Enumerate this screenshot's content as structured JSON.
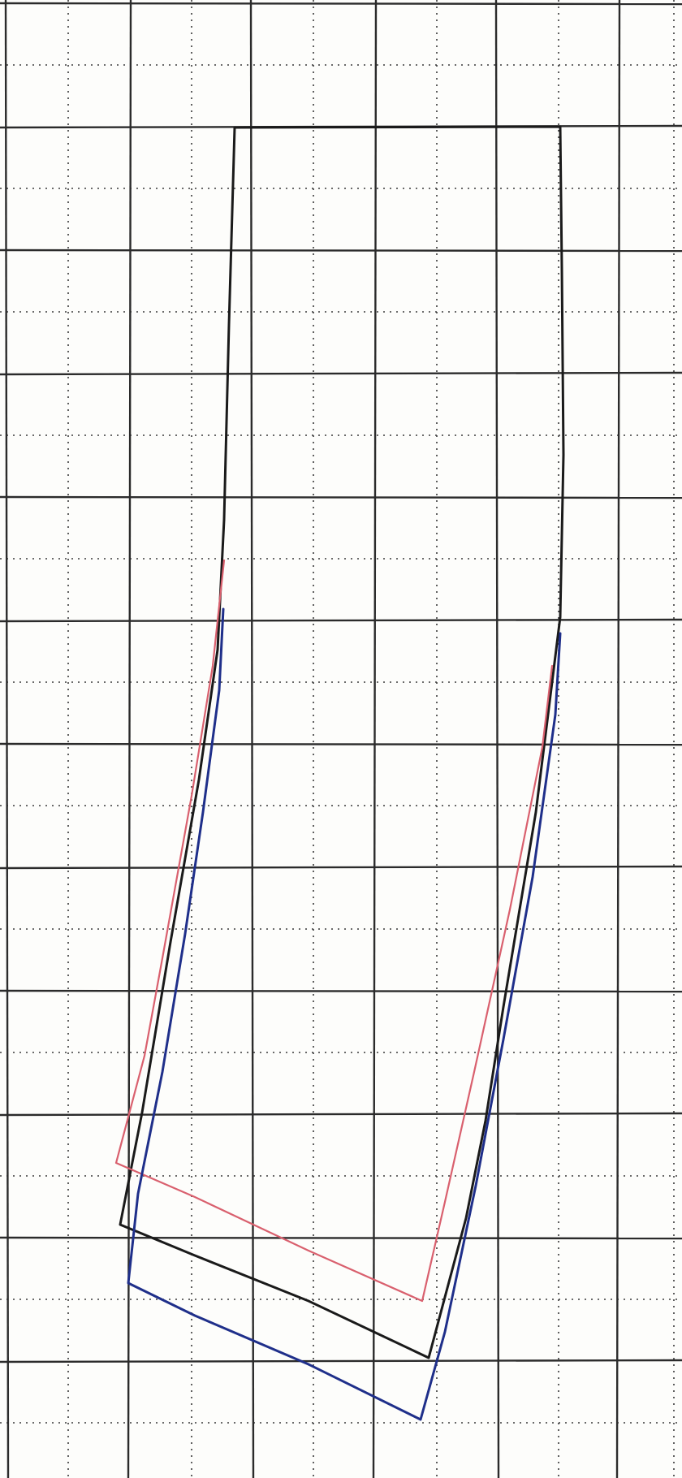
{
  "page": {
    "background": "#fdfdfb"
  },
  "grid": {
    "major_line_color": "#2b2b2b",
    "minor_line_color": "#3a3a3a",
    "minor_line_style": "dotted"
  },
  "shapes": [
    {
      "name": "black-outline",
      "color": "#1a1a1a"
    },
    {
      "name": "red-outline",
      "color": "#d9606e"
    },
    {
      "name": "blue-outline",
      "color": "#1f2f8a"
    }
  ]
}
